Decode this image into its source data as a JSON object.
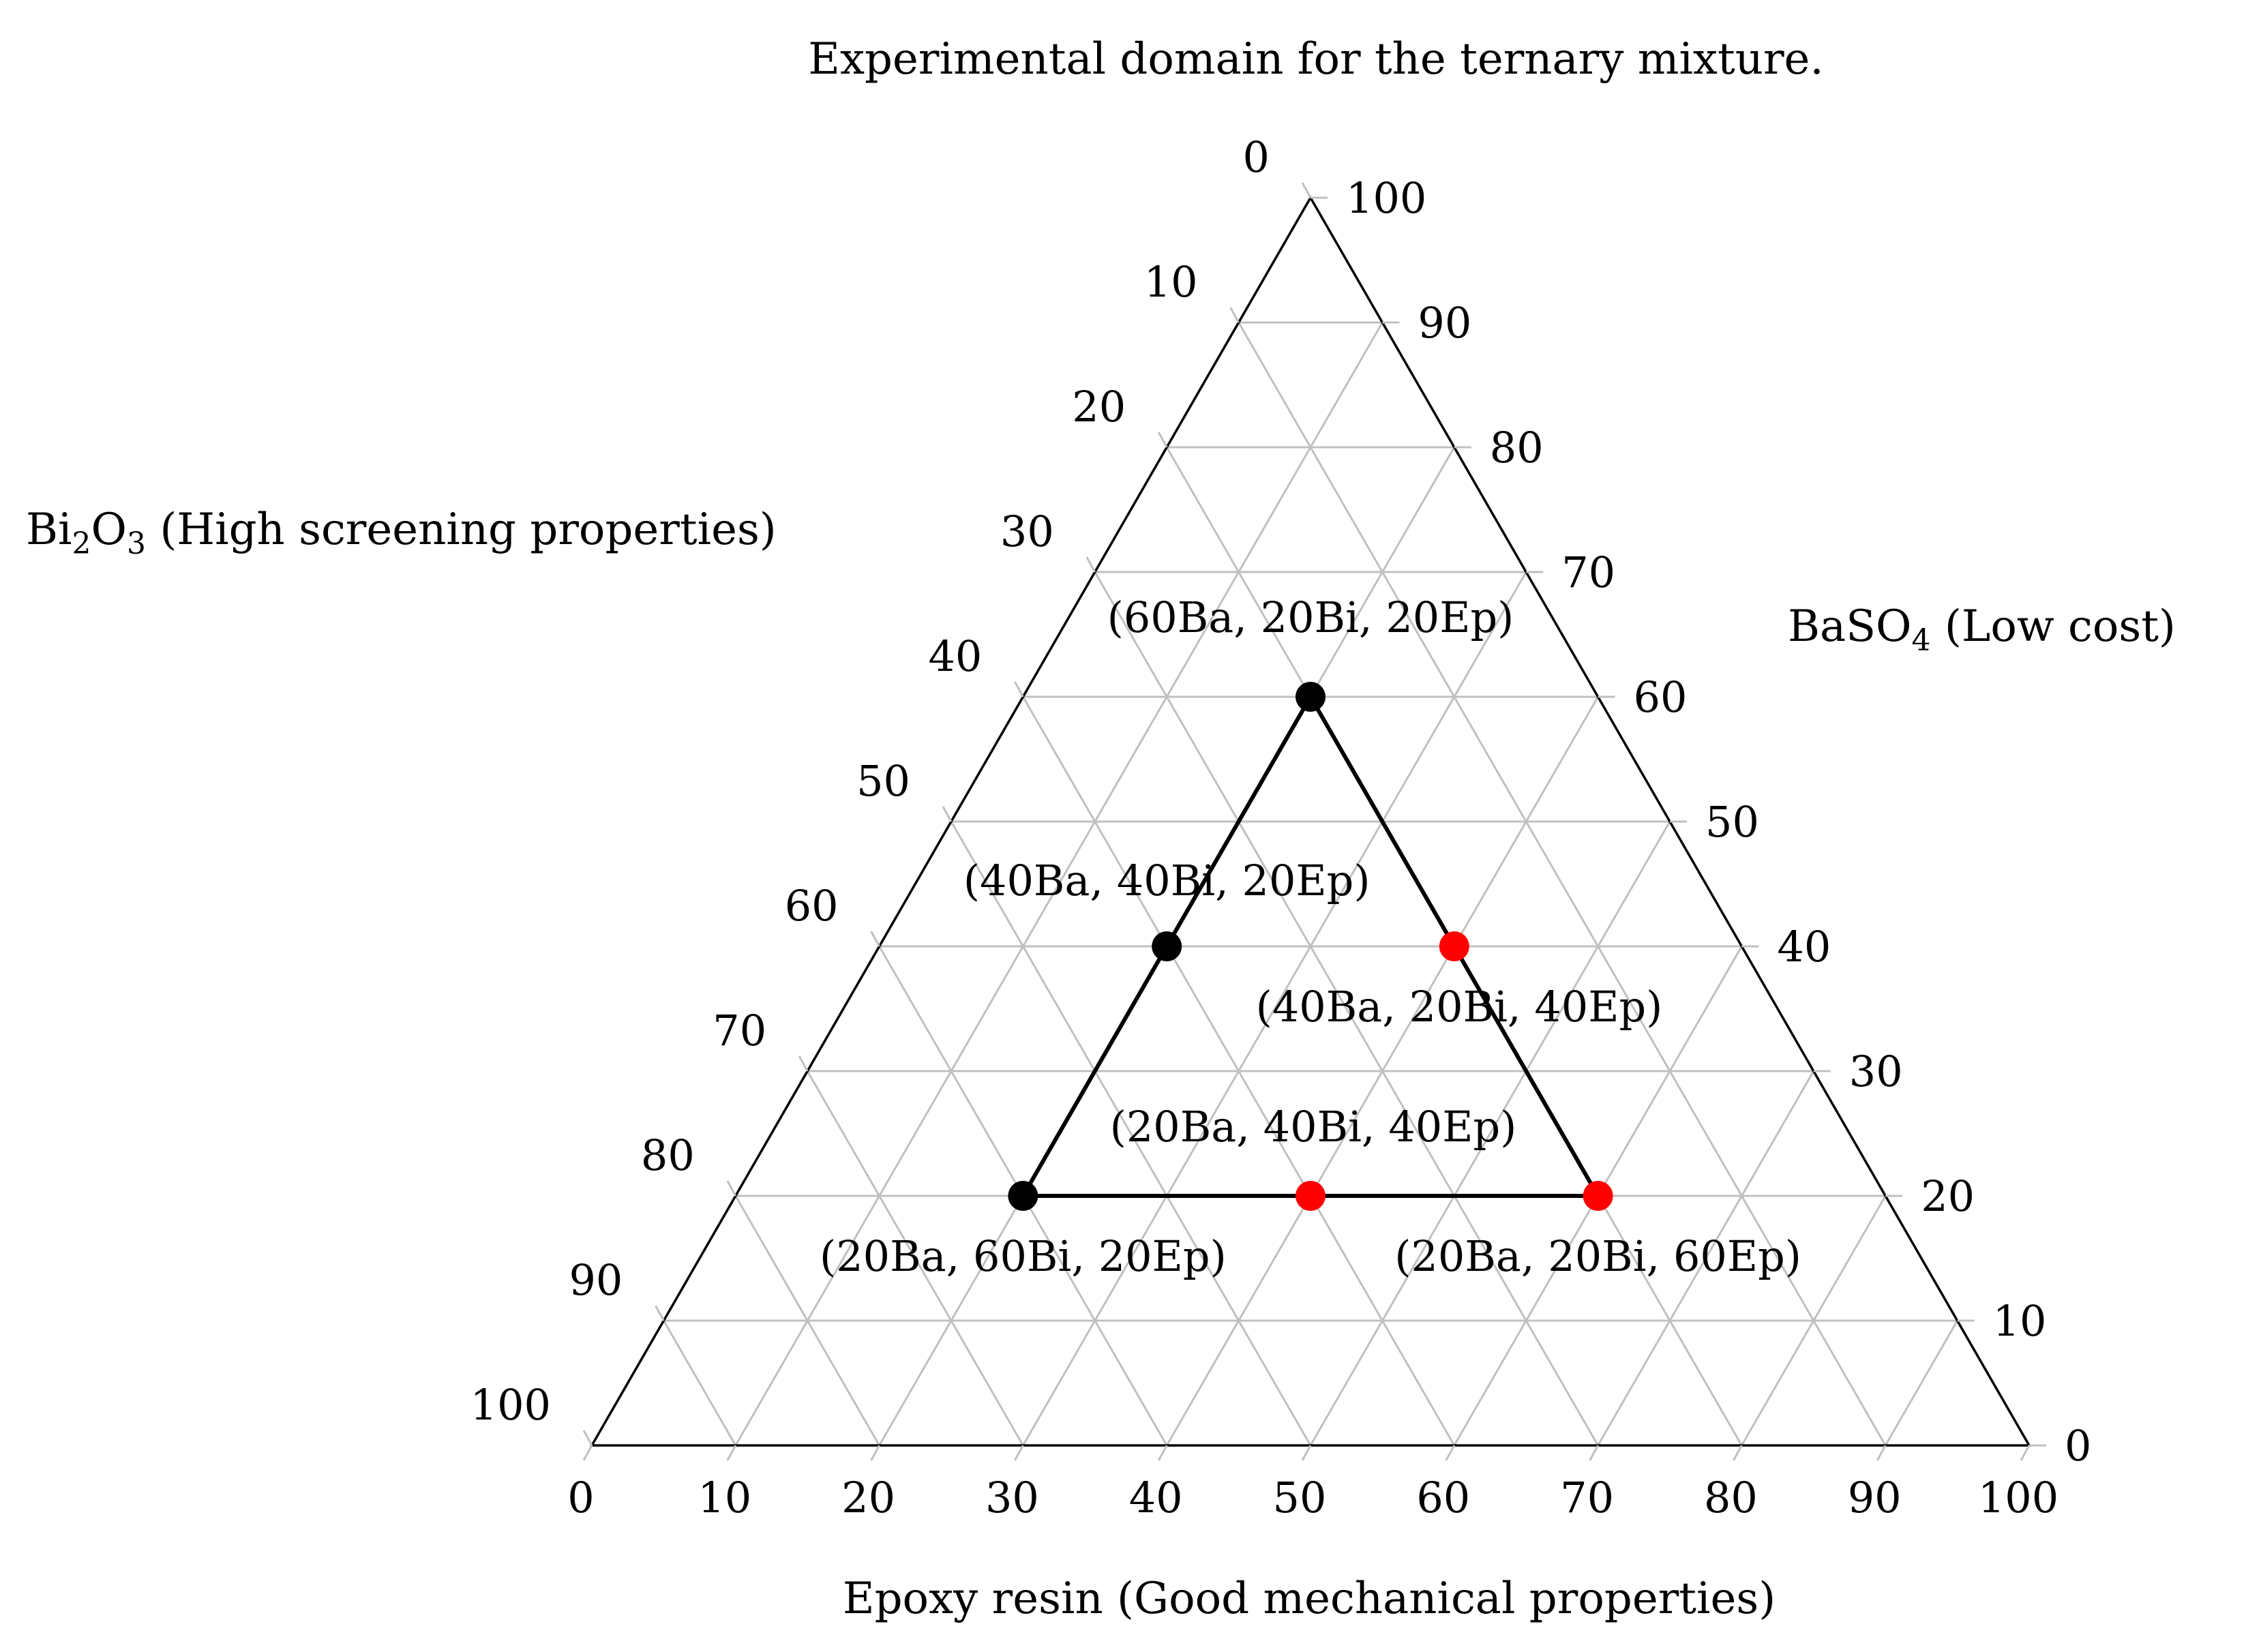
{
  "chart_data": {
    "type": "scatter",
    "subtype": "ternary",
    "title": "Experimental domain for the ternary mixture.",
    "axes": {
      "top": {
        "component": "BaSO4",
        "title_base": "BaSO",
        "title_sub": "4",
        "title_rest": " (Low cost)"
      },
      "left": {
        "component": "Bi2O3",
        "title_base": "Bi",
        "title_sub1": "2",
        "title_mid": "O",
        "title_sub2": "3",
        "title_rest": " (High screening properties)"
      },
      "bottom": {
        "component": "Epoxy resin",
        "title": "Epoxy resin (Good mechanical properties)"
      }
    },
    "ticks": [
      "0",
      "10",
      "20",
      "30",
      "40",
      "50",
      "60",
      "70",
      "80",
      "90",
      "100"
    ],
    "range": [
      0,
      100
    ],
    "grid": true,
    "grid_color": "#c0c0c0",
    "domain_outline": [
      {
        "Ba": 60,
        "Bi": 20,
        "Ep": 20
      },
      {
        "Ba": 20,
        "Bi": 60,
        "Ep": 20
      },
      {
        "Ba": 20,
        "Bi": 20,
        "Ep": 60
      }
    ],
    "points": [
      {
        "Ba": 60,
        "Bi": 20,
        "Ep": 20,
        "color": "#000000",
        "label": "(60Ba, 20Bi, 20Ep)"
      },
      {
        "Ba": 40,
        "Bi": 40,
        "Ep": 20,
        "color": "#000000",
        "label": "(40Ba, 40Bi, 20Ep)"
      },
      {
        "Ba": 20,
        "Bi": 60,
        "Ep": 20,
        "color": "#000000",
        "label": "(20Ba, 60Bi, 20Ep)"
      },
      {
        "Ba": 40,
        "Bi": 20,
        "Ep": 40,
        "color": "#ff0000",
        "label": "(40Ba, 20Bi, 40Ep)"
      },
      {
        "Ba": 20,
        "Bi": 20,
        "Ep": 60,
        "color": "#ff0000",
        "label": "(20Ba, 20Bi, 60Ep)"
      },
      {
        "Ba": 20,
        "Bi": 40,
        "Ep": 40,
        "color": "#ff0000",
        "label": "(20Ba, 40Bi, 40Ep)"
      }
    ]
  }
}
